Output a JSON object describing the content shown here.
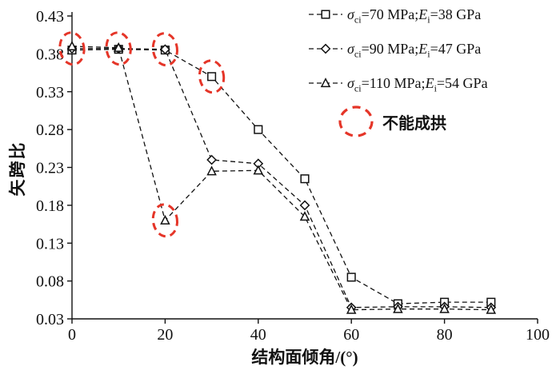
{
  "chart_data": {
    "type": "line",
    "title": "",
    "xlabel": "结构面倾角/(°)",
    "ylabel": "矢跨比",
    "xlim": [
      0,
      100
    ],
    "ylim": [
      0.03,
      0.43
    ],
    "xticks": [
      0,
      20,
      40,
      60,
      80,
      100
    ],
    "yticks": [
      0.03,
      0.08,
      0.13,
      0.18,
      0.23,
      0.28,
      0.33,
      0.38,
      0.43
    ],
    "grid": false,
    "line_style": "dashed",
    "line_color": "#111111",
    "legend_position": "top-right",
    "x": [
      0,
      10,
      20,
      30,
      40,
      50,
      60,
      70,
      80,
      90
    ],
    "series": [
      {
        "name": "σci=70 MPa;Ei=38 GPa",
        "marker": "square",
        "label": {
          "sigma": "σ",
          "sigma_sub": "ci",
          "sigma_val": "=70 MPa;",
          "E": "E",
          "E_sub": "i",
          "E_val": "=38 GPa"
        },
        "values": [
          0.385,
          0.386,
          0.385,
          0.35,
          0.28,
          0.215,
          0.085,
          0.05,
          0.052,
          0.052
        ]
      },
      {
        "name": "σci=90 MPa;Ei=47 GPa",
        "marker": "diamond",
        "label": {
          "sigma": "σ",
          "sigma_sub": "ci",
          "sigma_val": "=90 MPa;",
          "E": "E",
          "E_sub": "i",
          "E_val": "=47 GPa"
        },
        "values": [
          0.387,
          0.387,
          0.386,
          0.24,
          0.235,
          0.18,
          0.045,
          0.046,
          0.046,
          0.045
        ]
      },
      {
        "name": "σci=110 MPa;Ei=54 GPa",
        "marker": "triangle",
        "label": {
          "sigma": "σ",
          "sigma_sub": "ci",
          "sigma_val": "=110 MPa;",
          "E": "E",
          "E_sub": "i",
          "E_val": "=54 GPa"
        },
        "values": [
          0.39,
          0.388,
          0.16,
          0.225,
          0.226,
          0.165,
          0.042,
          0.043,
          0.043,
          0.042
        ]
      }
    ],
    "annotations": {
      "label": "不能成拱",
      "color": "#e53528",
      "circles": [
        {
          "x": 0,
          "y": 0.387
        },
        {
          "x": 10,
          "y": 0.387
        },
        {
          "x": 20,
          "y": 0.386
        },
        {
          "x": 30,
          "y": 0.35
        },
        {
          "x": 20,
          "y": 0.16
        }
      ]
    }
  }
}
